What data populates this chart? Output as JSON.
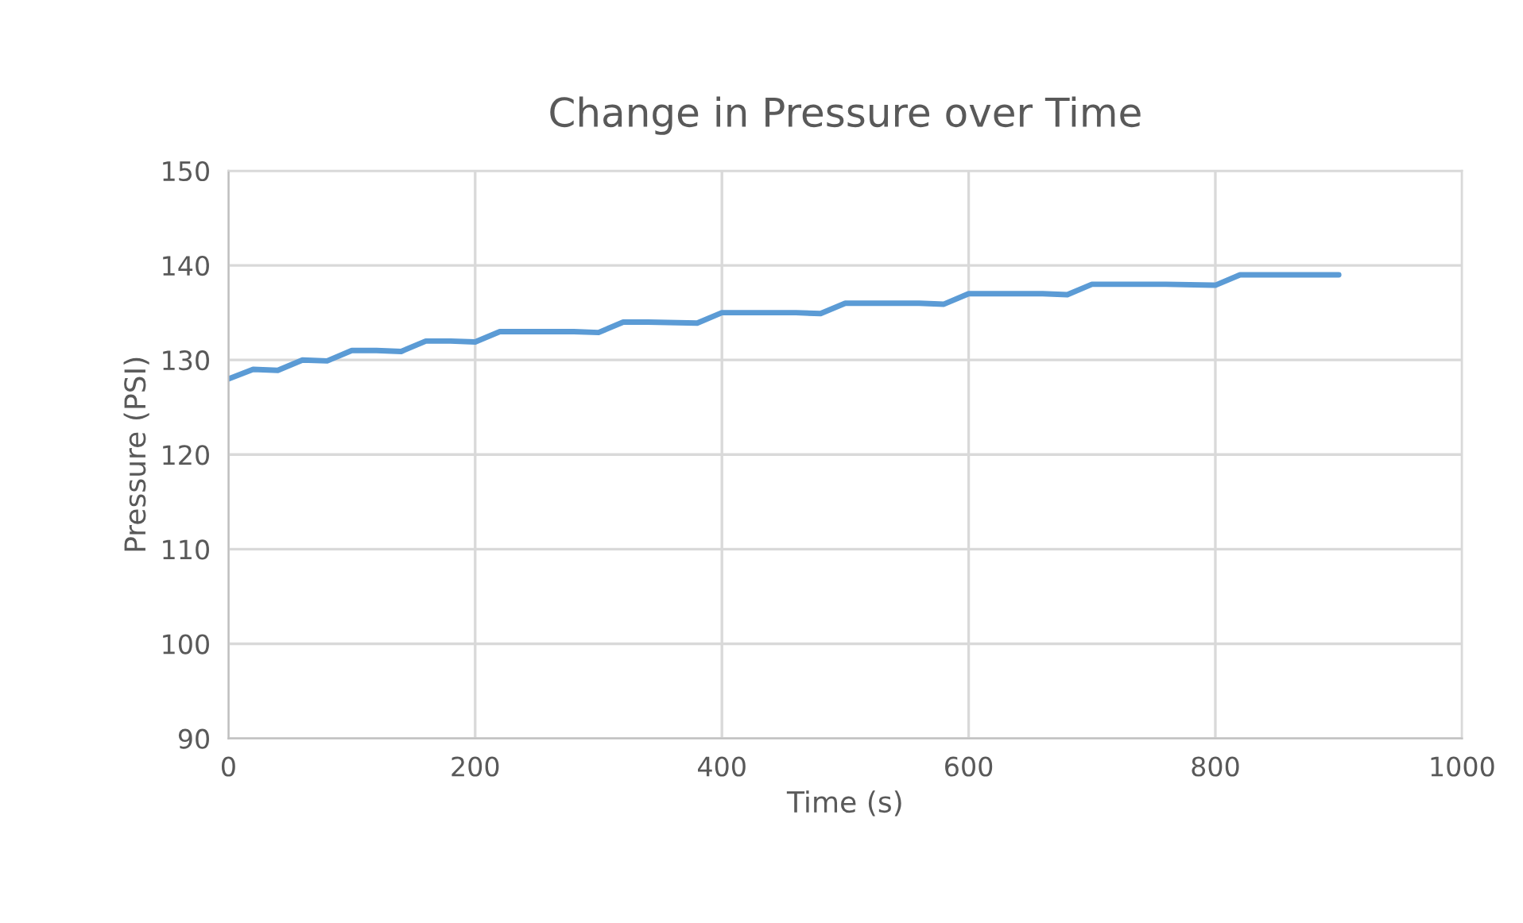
{
  "chart_data": {
    "type": "line",
    "title": "Change in Pressure over Time",
    "xlabel": "Time (s)",
    "ylabel": "Pressure (PSI)",
    "series": [
      {
        "color": "#5b9bd5",
        "x": [
          0,
          20,
          40,
          60,
          80,
          100,
          120,
          140,
          160,
          180,
          200,
          220,
          240,
          280,
          300,
          320,
          340,
          380,
          400,
          420,
          460,
          480,
          500,
          520,
          560,
          580,
          600,
          620,
          660,
          680,
          700,
          720,
          760,
          800,
          820,
          840,
          900
        ],
        "values": [
          128,
          129,
          128.9,
          130,
          129.9,
          131,
          131,
          130.9,
          132,
          132,
          131.9,
          133,
          133,
          133,
          132.9,
          134,
          134,
          133.9,
          135,
          135,
          135,
          134.9,
          136,
          136,
          136,
          135.9,
          137,
          137,
          137,
          136.9,
          138,
          138,
          138,
          137.9,
          139,
          139,
          139
        ]
      }
    ],
    "xlim": [
      0,
      1000
    ],
    "xticks": [
      0,
      200,
      400,
      600,
      800,
      1000
    ],
    "ylim": [
      90,
      150
    ],
    "yticks": [
      90,
      100,
      110,
      120,
      130,
      140,
      150
    ],
    "grid": true,
    "line_style": "solid",
    "marker": "none"
  }
}
